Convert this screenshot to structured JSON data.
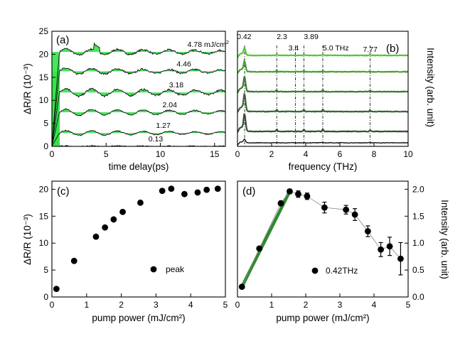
{
  "chart_data": [
    {
      "id": "a",
      "type": "line",
      "panel_label": "(a)",
      "xlabel": "time delay(ps)",
      "ylabel": "ΔR/R (10⁻³)",
      "xlim": [
        0,
        16
      ],
      "ylim": [
        0,
        25
      ],
      "xticks": [
        0,
        5,
        10,
        15
      ],
      "yticks": [
        0,
        5,
        10,
        15,
        20,
        25
      ],
      "series": [
        {
          "name": "4.78 mJ/cm²",
          "label": "4.78 mJ/cm",
          "label_sup": "2",
          "level": 20.5
        },
        {
          "name": "4.46",
          "label": "4.46",
          "level": 16.3
        },
        {
          "name": "3.18",
          "label": "3.18",
          "level": 11.7
        },
        {
          "name": "2.04",
          "label": "2.04",
          "level": 7.4
        },
        {
          "name": "1.27",
          "label": "1.27",
          "level": 2.9
        },
        {
          "name": "0.13",
          "label": "0.13",
          "level": 0.0
        }
      ]
    },
    {
      "id": "b",
      "type": "line",
      "panel_label": "(b)",
      "xlabel": "frequency (THz)",
      "ylabel": "Intensity (arb. unit)",
      "xlim": [
        0,
        10
      ],
      "xticks": [
        0,
        2,
        4,
        6,
        8,
        10
      ],
      "peak_lines": [
        0.42,
        2.3,
        3.4,
        3.89,
        5.0,
        7.77
      ],
      "peak_labels": [
        {
          "text": "0.42",
          "x": 0.42
        },
        {
          "text": "2.3",
          "x": 2.3
        },
        {
          "text": "3.4",
          "x": 3.4
        },
        {
          "text": "3.89",
          "x": 3.89
        },
        {
          "text": "5.0 THz",
          "x": 5.0
        },
        {
          "text": "7.77",
          "x": 7.77
        }
      ],
      "series": [
        {
          "name": "4.78",
          "color": "#58c43a"
        },
        {
          "name": "4.46",
          "color": "#48a034"
        },
        {
          "name": "3.18",
          "color": "#3f7a34"
        },
        {
          "name": "2.04",
          "color": "#3a6436"
        },
        {
          "name": "1.27",
          "color": "#384e36"
        },
        {
          "name": "0.13",
          "color": "#111111"
        }
      ]
    },
    {
      "id": "c",
      "type": "scatter",
      "panel_label": "(c)",
      "xlabel": "pump power (mJ/cm²)",
      "ylabel": "ΔR/R (10⁻³)",
      "xlim": [
        0,
        5
      ],
      "ylim": [
        0,
        21.5
      ],
      "xticks": [
        0,
        1,
        2,
        3,
        4,
        5
      ],
      "yticks": [
        0,
        5,
        10,
        15,
        20
      ],
      "legend": "peak",
      "x": [
        0.13,
        0.64,
        1.27,
        1.53,
        1.78,
        2.04,
        2.55,
        3.18,
        3.44,
        3.82,
        4.2,
        4.46,
        4.78
      ],
      "y": [
        1.5,
        6.7,
        11.2,
        12.9,
        14.4,
        15.8,
        17.5,
        19.7,
        20.1,
        19.1,
        19.4,
        19.9,
        20.1
      ]
    },
    {
      "id": "d",
      "type": "scatter",
      "panel_label": "(d)",
      "xlabel": "pump power (mJ/cm²)",
      "ylabel": "Intensity (arb. unit)",
      "xlim": [
        0,
        5
      ],
      "ylim": [
        0,
        2.15
      ],
      "xticks": [
        0,
        1,
        2,
        3,
        4,
        5
      ],
      "yticks": [
        0.0,
        0.5,
        1.0,
        1.5,
        2.0
      ],
      "legend": "0.42THz",
      "x": [
        0.13,
        0.64,
        1.27,
        1.53,
        1.78,
        2.04,
        2.55,
        3.18,
        3.44,
        3.82,
        4.2,
        4.46,
        4.78
      ],
      "y": [
        0.19,
        0.9,
        1.74,
        1.96,
        1.91,
        1.87,
        1.66,
        1.62,
        1.53,
        1.22,
        0.88,
        0.94,
        0.71
      ],
      "err": [
        0,
        0,
        0.04,
        0.04,
        0.06,
        0.06,
        0.1,
        0.08,
        0.11,
        0.1,
        0.13,
        0.17,
        0.3
      ],
      "fit_line": {
        "x": [
          0.13,
          1.53
        ],
        "y": [
          0.19,
          1.96
        ],
        "color": "#2f8a2f"
      }
    }
  ]
}
